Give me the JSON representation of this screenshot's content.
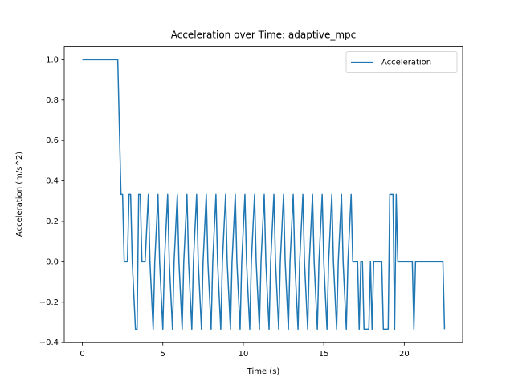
{
  "chart_data": {
    "type": "line",
    "title": "Acceleration over Time: adaptive_mpc",
    "x_label": "Time (s)",
    "y_label": "Acceleration (m/s^2)",
    "xlim": [
      -1.125,
      23.625
    ],
    "ylim": [
      -0.4,
      1.0667
    ],
    "xticks": [
      0,
      5,
      10,
      15,
      20
    ],
    "yticks": [
      {
        "value": -0.4,
        "label": "−0.4"
      },
      {
        "value": -0.2,
        "label": "−0.2"
      },
      {
        "value": 0,
        "label": "0.0"
      },
      {
        "value": 0.2,
        "label": "0.2"
      },
      {
        "value": 0.4,
        "label": "0.4"
      },
      {
        "value": 0.6,
        "label": "0.6"
      },
      {
        "value": 0.8,
        "label": "0.8"
      },
      {
        "value": 1.0,
        "label": "1.0"
      }
    ],
    "grid": false,
    "legend": "upper right",
    "x": [
      0,
      2.2,
      2.4,
      2.5,
      2.6,
      2.8,
      2.9,
      3.0,
      3.1,
      3.3,
      3.4,
      3.5,
      3.6,
      3.7,
      3.9,
      4.1,
      4.2,
      4.4,
      4.5,
      4.7,
      4.8,
      5.0,
      5.1,
      5.3,
      5.4,
      5.6,
      5.7,
      5.9,
      6.0,
      6.2,
      6.3,
      6.5,
      6.6,
      6.8,
      6.9,
      7.1,
      7.2,
      7.4,
      7.5,
      7.7,
      7.8,
      8.0,
      8.1,
      8.3,
      8.4,
      8.6,
      8.7,
      8.9,
      9.0,
      9.2,
      9.3,
      9.5,
      9.6,
      9.8,
      9.9,
      10.1,
      10.2,
      10.4,
      10.5,
      10.7,
      10.8,
      11.0,
      11.1,
      11.3,
      11.4,
      11.6,
      11.7,
      11.9,
      12.0,
      12.2,
      12.3,
      12.5,
      12.6,
      12.8,
      12.9,
      13.1,
      13.2,
      13.4,
      13.5,
      13.7,
      13.8,
      14.0,
      14.1,
      14.3,
      14.4,
      14.6,
      14.7,
      14.9,
      15.0,
      15.2,
      15.3,
      15.5,
      15.6,
      15.8,
      15.9,
      16.1,
      16.2,
      16.4,
      16.5,
      16.7,
      16.8,
      17.1,
      17.2,
      17.3,
      17.4,
      17.5,
      17.8,
      17.9,
      18.0,
      18.1,
      18.6,
      18.7,
      19.0,
      19.1,
      19.3,
      19.4,
      19.5,
      19.6,
      20.5,
      20.6,
      20.7,
      22.4,
      22.5
    ],
    "series": [
      {
        "name": "Acceleration",
        "color": "#1f77b4",
        "values": [
          1,
          1,
          0.3333,
          0.3333,
          0,
          0,
          0.3333,
          0.3333,
          0,
          -0.3333,
          -0.3333,
          0.3333,
          0.3333,
          0,
          0,
          0.3333,
          0,
          -0.3333,
          0,
          0.3333,
          0,
          -0.3333,
          0,
          0.3333,
          0,
          -0.3333,
          0,
          0.3333,
          0,
          -0.3333,
          0,
          0.3333,
          0,
          -0.3333,
          0,
          0.3333,
          0,
          -0.3333,
          0,
          0.3333,
          0,
          -0.3333,
          0,
          0.3333,
          0,
          -0.3333,
          0,
          0.3333,
          0,
          -0.3333,
          0,
          0.3333,
          0,
          -0.3333,
          0,
          0.3333,
          0,
          -0.3333,
          0,
          0.3333,
          0,
          -0.3333,
          0,
          0.3333,
          0,
          -0.3333,
          0,
          0.3333,
          0,
          -0.3333,
          0,
          0.3333,
          0,
          -0.3333,
          0,
          0.3333,
          0,
          -0.3333,
          0,
          0.3333,
          0,
          -0.3333,
          0,
          0.3333,
          0,
          -0.3333,
          0,
          0.3333,
          0,
          -0.3333,
          0,
          0.3333,
          0,
          -0.3333,
          0,
          0.3333,
          0,
          -0.3333,
          0,
          0.3333,
          0,
          0,
          -0.3333,
          0,
          0,
          -0.3333,
          -0.3333,
          0,
          -0.3333,
          0,
          0,
          -0.3333,
          -0.3333,
          0.3333,
          0.3333,
          -0.3333,
          0.3333,
          0,
          0,
          -0.3333,
          0,
          0,
          -0.3333
        ]
      }
    ]
  }
}
